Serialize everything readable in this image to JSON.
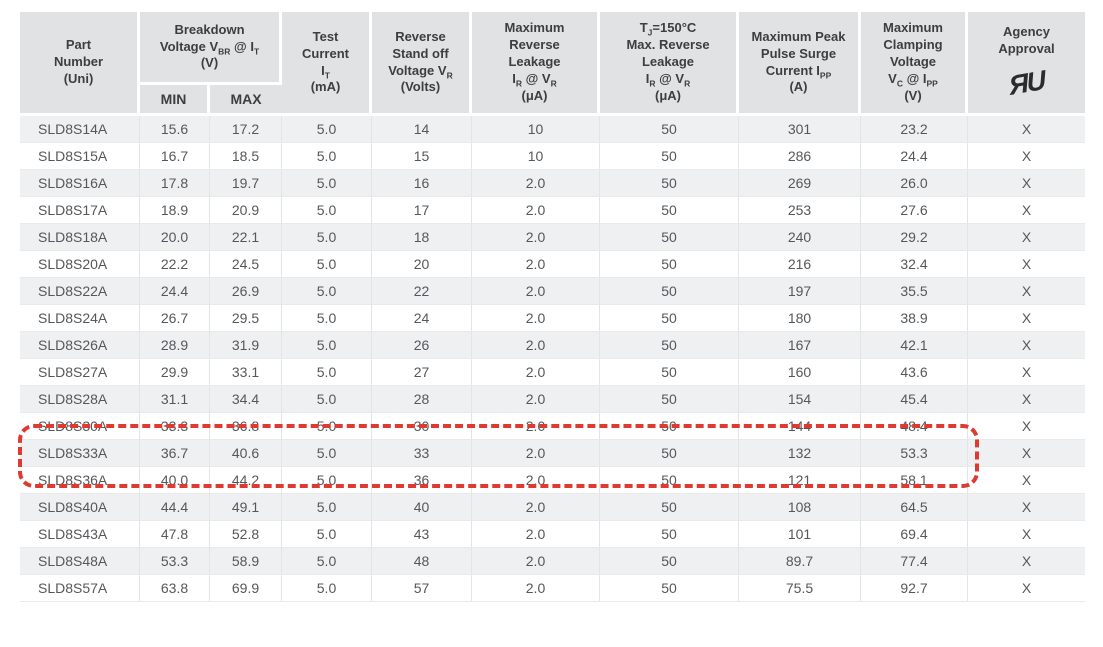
{
  "colors": {
    "page_background": "#ffffff",
    "header_background": "#e1e2e4",
    "stripe_background": "#eef0f1",
    "header_text": "#3d3e40",
    "body_text": "#55575a",
    "highlight_red": "#e03a30"
  },
  "table": {
    "column_ids": [
      "part_number",
      "vbr_min",
      "vbr_max",
      "test_current",
      "standoff_voltage",
      "max_reverse_leakage",
      "tj150_reverse_leakage",
      "peak_pulse_surge",
      "clamping_voltage",
      "agency_approval"
    ],
    "headers": {
      "part": {
        "segments": [
          {
            "t": "Part"
          },
          {
            "br": true
          },
          {
            "t": "Number"
          },
          {
            "br": true
          },
          {
            "t": "(Uni)"
          }
        ]
      },
      "breakdown": {
        "segments": [
          {
            "t": "Breakdown"
          },
          {
            "br": true
          },
          {
            "t": "Voltage V"
          },
          {
            "sub": "BR"
          },
          {
            "t": " @ I"
          },
          {
            "sub": "T"
          },
          {
            "br": true
          },
          {
            "t": "(V)"
          }
        ]
      },
      "min": {
        "segments": [
          {
            "t": "MIN"
          }
        ]
      },
      "max": {
        "segments": [
          {
            "t": "MAX"
          }
        ]
      },
      "test_current": {
        "segments": [
          {
            "t": "Test"
          },
          {
            "br": true
          },
          {
            "t": "Current"
          },
          {
            "br": true
          },
          {
            "t": "I"
          },
          {
            "sub": "T"
          },
          {
            "br": true
          },
          {
            "t": "(mA)"
          }
        ]
      },
      "standoff": {
        "segments": [
          {
            "t": "Reverse"
          },
          {
            "br": true
          },
          {
            "t": "Stand off"
          },
          {
            "br": true
          },
          {
            "t": "Voltage V"
          },
          {
            "sub": "R"
          },
          {
            "br": true
          },
          {
            "t": "(Volts)"
          }
        ]
      },
      "max_leakage": {
        "segments": [
          {
            "t": "Maximum"
          },
          {
            "br": true
          },
          {
            "t": "Reverse"
          },
          {
            "br": true
          },
          {
            "t": "Leakage"
          },
          {
            "br": true
          },
          {
            "t": "I"
          },
          {
            "sub": "R"
          },
          {
            "t": " @ V"
          },
          {
            "sub": "R"
          },
          {
            "br": true
          },
          {
            "t": "(μA)"
          }
        ]
      },
      "tj_leakage": {
        "segments": [
          {
            "t": "T"
          },
          {
            "sub": "J"
          },
          {
            "t": "=150°C"
          },
          {
            "br": true
          },
          {
            "t": "Max. Reverse"
          },
          {
            "br": true
          },
          {
            "t": "Leakage"
          },
          {
            "br": true
          },
          {
            "t": "I"
          },
          {
            "sub": "R"
          },
          {
            "t": " @ V"
          },
          {
            "sub": "R"
          },
          {
            "br": true
          },
          {
            "t": "(μA)"
          }
        ]
      },
      "surge": {
        "segments": [
          {
            "t": "Maximum Peak"
          },
          {
            "br": true
          },
          {
            "t": "Pulse Surge"
          },
          {
            "br": true
          },
          {
            "t": "Current I"
          },
          {
            "sub": "PP"
          },
          {
            "br": true
          },
          {
            "t": "(A)"
          }
        ]
      },
      "clamping": {
        "segments": [
          {
            "t": "Maximum"
          },
          {
            "br": true
          },
          {
            "t": "Clamping"
          },
          {
            "br": true
          },
          {
            "t": "Voltage"
          },
          {
            "br": true
          },
          {
            "t": "V"
          },
          {
            "sub": "C"
          },
          {
            "t": " @ I"
          },
          {
            "sub": "PP"
          },
          {
            "br": true
          },
          {
            "t": "(V)"
          }
        ]
      },
      "agency": {
        "segments": [
          {
            "t": "Agency"
          },
          {
            "br": true
          },
          {
            "t": "Approval"
          }
        ]
      }
    },
    "agency_icon": {
      "name": "ul-recognized-component-mark",
      "glyph": "ЯU"
    },
    "rows": [
      [
        "SLD8S14A",
        "15.6",
        "17.2",
        "5.0",
        "14",
        "10",
        "50",
        "301",
        "23.2",
        "X"
      ],
      [
        "SLD8S15A",
        "16.7",
        "18.5",
        "5.0",
        "15",
        "10",
        "50",
        "286",
        "24.4",
        "X"
      ],
      [
        "SLD8S16A",
        "17.8",
        "19.7",
        "5.0",
        "16",
        "2.0",
        "50",
        "269",
        "26.0",
        "X"
      ],
      [
        "SLD8S17A",
        "18.9",
        "20.9",
        "5.0",
        "17",
        "2.0",
        "50",
        "253",
        "27.6",
        "X"
      ],
      [
        "SLD8S18A",
        "20.0",
        "22.1",
        "5.0",
        "18",
        "2.0",
        "50",
        "240",
        "29.2",
        "X"
      ],
      [
        "SLD8S20A",
        "22.2",
        "24.5",
        "5.0",
        "20",
        "2.0",
        "50",
        "216",
        "32.4",
        "X"
      ],
      [
        "SLD8S22A",
        "24.4",
        "26.9",
        "5.0",
        "22",
        "2.0",
        "50",
        "197",
        "35.5",
        "X"
      ],
      [
        "SLD8S24A",
        "26.7",
        "29.5",
        "5.0",
        "24",
        "2.0",
        "50",
        "180",
        "38.9",
        "X"
      ],
      [
        "SLD8S26A",
        "28.9",
        "31.9",
        "5.0",
        "26",
        "2.0",
        "50",
        "167",
        "42.1",
        "X"
      ],
      [
        "SLD8S27A",
        "29.9",
        "33.1",
        "5.0",
        "27",
        "2.0",
        "50",
        "160",
        "43.6",
        "X"
      ],
      [
        "SLD8S28A",
        "31.1",
        "34.4",
        "5.0",
        "28",
        "2.0",
        "50",
        "154",
        "45.4",
        "X"
      ],
      [
        "SLD8S30A",
        "33.3",
        "36.8",
        "5.0",
        "30",
        "2.0",
        "50",
        "144",
        "48.4",
        "X"
      ],
      [
        "SLD8S33A",
        "36.7",
        "40.6",
        "5.0",
        "33",
        "2.0",
        "50",
        "132",
        "53.3",
        "X"
      ],
      [
        "SLD8S36A",
        "40.0",
        "44.2",
        "5.0",
        "36",
        "2.0",
        "50",
        "121",
        "58.1",
        "X"
      ],
      [
        "SLD8S40A",
        "44.4",
        "49.1",
        "5.0",
        "40",
        "2.0",
        "50",
        "108",
        "64.5",
        "X"
      ],
      [
        "SLD8S43A",
        "47.8",
        "52.8",
        "5.0",
        "43",
        "2.0",
        "50",
        "101",
        "69.4",
        "X"
      ],
      [
        "SLD8S48A",
        "53.3",
        "58.9",
        "5.0",
        "48",
        "2.0",
        "50",
        "89.7",
        "77.4",
        "X"
      ],
      [
        "SLD8S57A",
        "63.8",
        "69.9",
        "5.0",
        "57",
        "2.0",
        "50",
        "75.5",
        "92.7",
        "X"
      ]
    ]
  },
  "highlight": {
    "shape": "dashed-rounded-rectangle",
    "color": "#e03a30",
    "highlighted_rows": [
      "SLD8S30A",
      "SLD8S33A"
    ]
  }
}
